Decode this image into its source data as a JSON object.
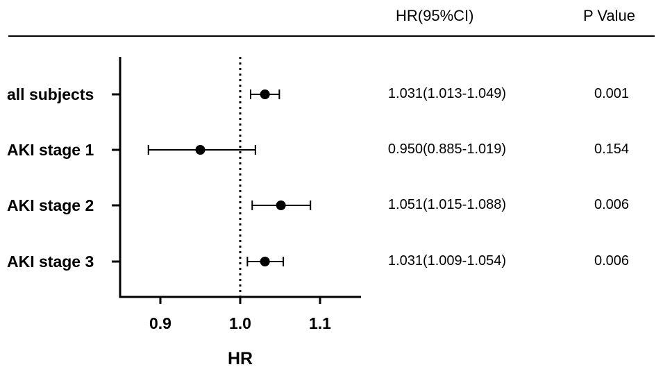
{
  "table": {
    "header_hr": "HR(95%CI)",
    "header_p": "P Value"
  },
  "chart_data": {
    "type": "forest",
    "xlabel": "HR",
    "xlim": [
      0.85,
      1.15
    ],
    "xticks": [
      0.9,
      1.0,
      1.1
    ],
    "xtick_labels": [
      "0.9",
      "1.0",
      "1.1"
    ],
    "reference_line": 1.0,
    "rows": [
      {
        "label": "all subjects",
        "hr": 1.031,
        "lower": 1.013,
        "upper": 1.049,
        "hr_ci": "1.031(1.013-1.049)",
        "p": "0.001"
      },
      {
        "label": "AKI stage 1",
        "hr": 0.95,
        "lower": 0.885,
        "upper": 1.019,
        "hr_ci": "0.950(0.885-1.019)",
        "p": "0.154"
      },
      {
        "label": "AKI stage 2",
        "hr": 1.051,
        "lower": 1.015,
        "upper": 1.088,
        "hr_ci": "1.051(1.015-1.088)",
        "p": "0.006"
      },
      {
        "label": "AKI stage 3",
        "hr": 1.031,
        "lower": 1.009,
        "upper": 1.054,
        "hr_ci": "1.031(1.009-1.054)",
        "p": "0.006"
      }
    ]
  }
}
